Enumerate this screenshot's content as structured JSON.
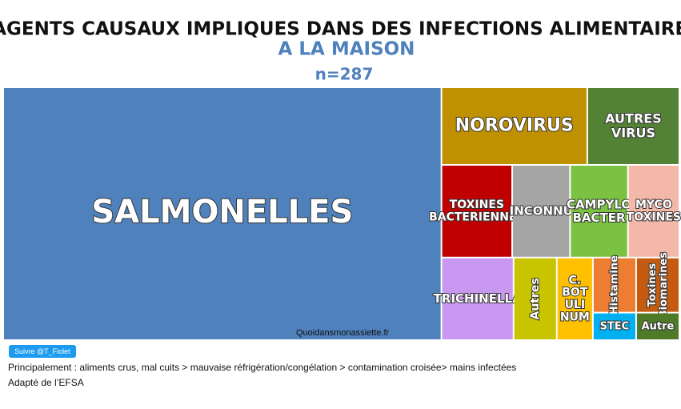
{
  "chart_data": {
    "type": "treemap",
    "title": "AGENTS CAUSAUX IMPLIQUES DANS DES INFECTIONS ALIMENTAIRES",
    "title_highlight": "A LA MAISON",
    "subtitle": "n=287",
    "categories": [
      "SALMONELLES",
      "NOROVIRUS",
      "AUTRES\nVIRUS",
      "TOXINES\nBACTERIENNES",
      "INCONNU",
      "CAMPYLO\nBACTER",
      "MYCO\nTOXINES",
      "TRICHINELLA",
      "Autres",
      "C.\nBOT\nULI\nNUM",
      "Histamine",
      "STEC",
      "Toxines\nBiomarines",
      "Autre"
    ],
    "values": [
      186,
      19,
      12,
      11,
      9,
      9,
      8,
      10,
      6,
      5,
      4,
      2,
      4,
      2
    ],
    "colors": [
      "#4f81bd",
      "#bf9000",
      "#548235",
      "#c00000",
      "#a5a5a5",
      "#7cc242",
      "#f4b8a8",
      "#c898f0",
      "#c9c400",
      "#ffc000",
      "#ed7d31",
      "#00b0f0",
      "#c55a11",
      "#4f7a28"
    ],
    "watermark": "Quoidansmonassiette.fr"
  },
  "footer": {
    "button": "Suivre @T_Fiolet",
    "note": "Principalement  : aliments crus, mal cuits > mauvaise réfrigération/congélation > contamination croisée> mains infectées",
    "source": "Adapté de l’EFSA"
  }
}
